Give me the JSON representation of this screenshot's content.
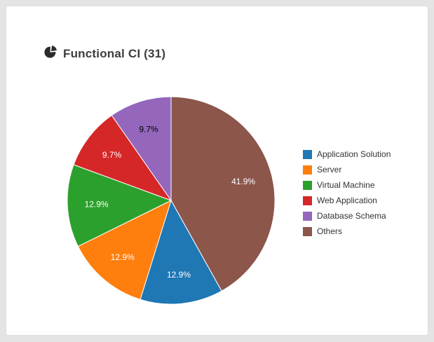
{
  "icons": {
    "title_icon": "pie-chart-icon",
    "title_icon_color": "#2b2b2b"
  },
  "chart_data": {
    "type": "pie",
    "title": "Functional CI (31)",
    "total_count": 31,
    "value_format": "percent",
    "start_angle_deg": 0,
    "clockwise": true,
    "legend_position": "right",
    "slices": [
      {
        "label": "Others",
        "value": 41.9,
        "color": "#8c564b",
        "label_color": "#ffffff"
      },
      {
        "label": "Application Solution",
        "value": 12.9,
        "color": "#1f77b4",
        "label_color": "#ffffff"
      },
      {
        "label": "Server",
        "value": 12.9,
        "color": "#ff7f0e",
        "label_color": "#ffffff"
      },
      {
        "label": "Virtual Machine",
        "value": 12.9,
        "color": "#2ca02c",
        "label_color": "#ffffff"
      },
      {
        "label": "Web Application",
        "value": 9.7,
        "color": "#d62728",
        "label_color": "#ffffff"
      },
      {
        "label": "Database Schema",
        "value": 9.7,
        "color": "#9467bd",
        "label_color": "#000000"
      }
    ],
    "legend": [
      "Application Solution",
      "Server",
      "Virtual Machine",
      "Web Application",
      "Database Schema",
      "Others"
    ]
  }
}
